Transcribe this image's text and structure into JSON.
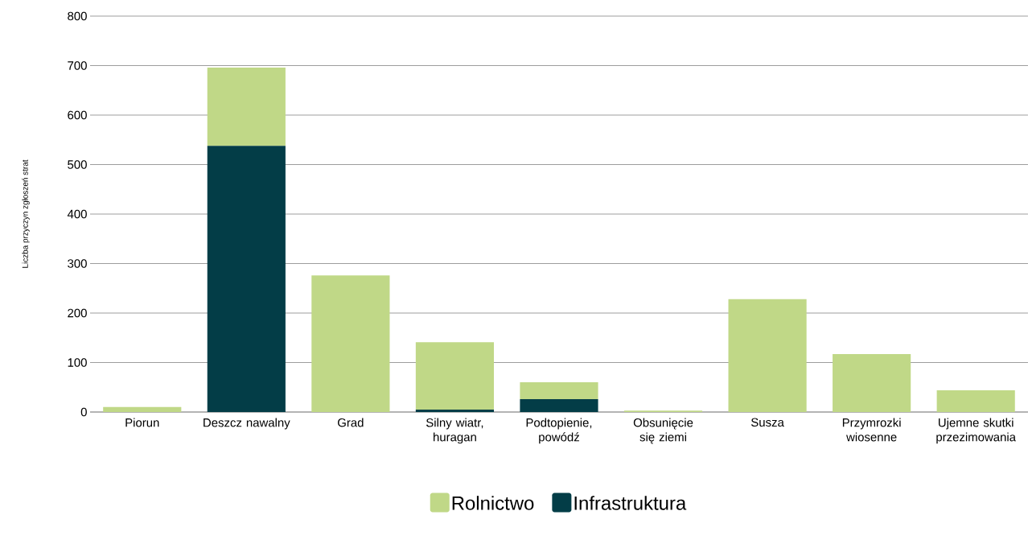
{
  "chart_data": {
    "type": "bar",
    "ylabel": "Liczba przyczyn zgłoszeń strat",
    "categories": [
      "Piorun",
      "Deszcz nawalny",
      "Grad",
      "Silny wiatr, huragan",
      "Podtopienie, powódź",
      "Obsunięcie się ziemi",
      "Susza",
      "Przymrozki wiosenne",
      "Ujemne skutki przezimowania"
    ],
    "series": [
      {
        "name": "Infrastruktura",
        "color": "#033d47",
        "values": [
          0,
          538,
          0,
          5,
          26,
          0,
          0,
          0,
          0
        ]
      },
      {
        "name": "Rolnictwo",
        "color": "#c0d887",
        "values": [
          10,
          158,
          276,
          136,
          34,
          3,
          228,
          117,
          44
        ]
      }
    ],
    "stacked": true,
    "ylim": [
      0,
      800
    ],
    "yticks": [
      0,
      100,
      200,
      300,
      400,
      500,
      600,
      700,
      800
    ],
    "grid": "y",
    "legend": "bottom"
  }
}
